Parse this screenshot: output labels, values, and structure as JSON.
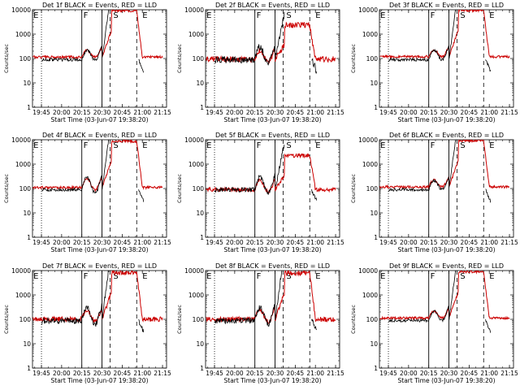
{
  "chart_data": [
    {
      "type": "line",
      "title": "Det 1f BLACK = Events, RED = LLD",
      "seed": 1,
      "events_off": 4.6,
      "lld_off": 2.1,
      "lld_bump": 0.2,
      "ev_bump": 0.25,
      "peak_ev": 3.0,
      "peak_lld": 1.1,
      "noise": 0.25,
      "labels": [
        {
          "text": "E",
          "x": 19.65
        },
        {
          "text": "F",
          "x": 20.27
        },
        {
          "text": "S",
          "x": 20.64
        },
        {
          "text": "E",
          "x": 21.0
        }
      ]
    },
    {
      "type": "line",
      "title": "Det 2f BLACK = Events, RED = LLD",
      "seed": 2,
      "events_off": 3.3,
      "lld_off": 1.1,
      "lld_bump": 0.3,
      "ev_bump": 0.3,
      "peak_ev": 2.0,
      "peak_lld": 0.6,
      "noise": 0.6,
      "labels": [
        {
          "text": "E",
          "x": 19.65
        },
        {
          "text": "F",
          "x": 20.27
        },
        {
          "text": "S",
          "x": 20.64
        },
        {
          "text": "E",
          "x": 21.0
        }
      ]
    },
    {
      "type": "line",
      "title": "Det 3f BLACK = Events, RED = LLD",
      "seed": 3,
      "events_off": 5.5,
      "lld_off": 2.3,
      "lld_bump": 0.2,
      "ev_bump": 0.25,
      "peak_ev": 3.0,
      "peak_lld": 1.1,
      "noise": 0.25,
      "labels": [
        {
          "text": "E",
          "x": 19.65
        },
        {
          "text": "F",
          "x": 20.27
        },
        {
          "text": "S",
          "x": 20.64
        },
        {
          "text": "E",
          "x": 21.0
        }
      ]
    },
    {
      "type": "line",
      "title": "Det 4f BLACK = Events, RED = LLD",
      "seed": 4,
      "events_off": 3.6,
      "lld_off": 1.9,
      "lld_bump": 0.3,
      "ev_bump": 0.3,
      "peak_ev": 3.0,
      "peak_lld": 1.1,
      "noise": 0.25,
      "labels": [
        {
          "text": "E",
          "x": 19.65
        },
        {
          "text": "F",
          "x": 20.27
        },
        {
          "text": "S",
          "x": 20.64
        },
        {
          "text": "E",
          "x": 21.0
        }
      ]
    },
    {
      "type": "line",
      "title": "Det 5f BLACK = Events, RED = LLD",
      "seed": 5,
      "events_off": 2.3,
      "lld_off": 0.9,
      "lld_bump": 0.3,
      "ev_bump": 0.3,
      "peak_ev": 2.0,
      "peak_lld": 0.6,
      "noise": 0.4,
      "labels": [
        {
          "text": "E",
          "x": 19.65
        },
        {
          "text": "F",
          "x": 20.27
        },
        {
          "text": "S",
          "x": 20.64
        },
        {
          "text": "E",
          "x": 21.0
        }
      ]
    },
    {
      "type": "line",
      "title": "Det 6f BLACK = Events, RED = LLD",
      "seed": 6,
      "events_off": 4.6,
      "lld_off": 2.2,
      "lld_bump": 0.2,
      "ev_bump": 0.25,
      "peak_ev": 3.0,
      "peak_lld": 1.1,
      "noise": 0.25,
      "labels": [
        {
          "text": "E",
          "x": 19.65
        },
        {
          "text": "F",
          "x": 20.27
        },
        {
          "text": "S",
          "x": 20.64
        },
        {
          "text": "E",
          "x": 21.0
        }
      ]
    },
    {
      "type": "line",
      "title": "Det 7f BLACK = Events, RED = LLD",
      "seed": 7,
      "events_off": 3.5,
      "lld_off": 1.5,
      "lld_bump": 0.3,
      "ev_bump": 0.3,
      "peak_ev": 3.0,
      "peak_lld": 1.1,
      "noise": 0.5,
      "labels": [
        {
          "text": "E",
          "x": 19.65
        },
        {
          "text": "F",
          "x": 20.27
        },
        {
          "text": "S",
          "x": 20.64
        },
        {
          "text": "E",
          "x": 21.0
        }
      ]
    },
    {
      "type": "line",
      "title": "Det 8f BLACK = Events, RED = LLD",
      "seed": 8,
      "events_off": 2.3,
      "lld_off": 1.4,
      "lld_bump": 0.3,
      "ev_bump": 0.3,
      "peak_ev": 3.0,
      "peak_lld": 1.1,
      "noise": 0.5,
      "labels": [
        {
          "text": "E",
          "x": 19.65
        },
        {
          "text": "F",
          "x": 20.27
        },
        {
          "text": "S",
          "x": 20.64
        },
        {
          "text": "E",
          "x": 21.0
        }
      ]
    },
    {
      "type": "line",
      "title": "Det 9f BLACK = Events, RED = LLD",
      "seed": 9,
      "events_off": 4.6,
      "lld_off": 2.0,
      "lld_bump": 0.2,
      "ev_bump": 0.25,
      "peak_ev": 3.0,
      "peak_lld": 1.1,
      "noise": 0.25,
      "labels": [
        {
          "text": "E",
          "x": 19.65
        },
        {
          "text": "F",
          "x": 20.27
        },
        {
          "text": "S",
          "x": 20.64
        },
        {
          "text": "E",
          "x": 21.0
        }
      ]
    }
  ],
  "shared": {
    "xlabel": "Start Time (03-Jun-07 19:38:20)",
    "ylabel": "Counts/sec",
    "x_range": [
      19.639,
      21.3
    ],
    "y_range": [
      1,
      10000
    ],
    "y_log": true,
    "x_ticks": [
      19.75,
      20.0,
      20.25,
      20.5,
      20.75,
      21.0,
      21.25
    ],
    "x_tick_labels": [
      "19:45",
      "20:00",
      "20:15",
      "20:30",
      "20:45",
      "21:00",
      "21:15"
    ],
    "y_ticks": [
      1,
      10,
      100,
      1000,
      10000
    ],
    "y_tick_labels": [
      "1",
      "10",
      "100",
      "1000",
      "10000"
    ],
    "series_colors": {
      "events": "#000000",
      "lld": "#cc0000"
    },
    "markers": [
      {
        "x": 19.75,
        "style": "dotted"
      },
      {
        "x": 20.25,
        "style": "solid"
      },
      {
        "x": 20.5,
        "style": "solid"
      },
      {
        "x": 20.6,
        "style": "dashed"
      },
      {
        "x": 20.93,
        "style": "dashed"
      }
    ]
  }
}
